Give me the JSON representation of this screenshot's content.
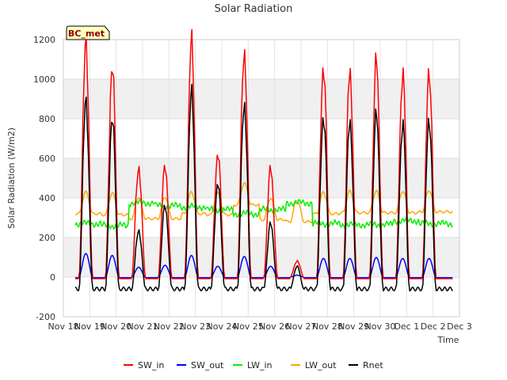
{
  "chart_data": {
    "type": "line",
    "title": "Solar Radiation",
    "xlabel": "Time",
    "ylabel": "Solar Radiation (W/m2)",
    "badge": "BC_met",
    "x_ticks": [
      "Nov 18",
      "Nov 19",
      "Nov 20",
      "Nov 21",
      "Nov 22",
      "Nov 23",
      "Nov 24",
      "Nov 25",
      "Nov 26",
      "Nov 27",
      "Nov 28",
      "Nov 29",
      "Nov 30",
      "Dec 1",
      "Dec 2",
      "Dec 3"
    ],
    "xlim": [
      0,
      15
    ],
    "ylim": [
      -200,
      1200
    ],
    "y_ticks": [
      -200,
      0,
      200,
      400,
      600,
      800,
      1000,
      1200
    ],
    "grid": true,
    "legend_position": "bottom",
    "x_unit_note": "x values are days after Nov 18",
    "days": [
      {
        "sw_in": 1160,
        "sw_out": 120,
        "lw_in": 270,
        "lw_out": 430,
        "rnet": 870
      },
      {
        "sw_in": 1060,
        "sw_out": 110,
        "lw_in": 260,
        "lw_out": 425,
        "rnet": 800
      },
      {
        "sw_in": 560,
        "sw_out": 50,
        "lw_in": 375,
        "lw_out": 405,
        "rnet": 240
      },
      {
        "sw_in": 560,
        "sw_out": 60,
        "lw_in": 360,
        "lw_out": 405,
        "rnet": 360
      },
      {
        "sw_in": 1180,
        "sw_out": 110,
        "lw_in": 355,
        "lw_out": 430,
        "rnet": 920
      },
      {
        "sw_in": 630,
        "sw_out": 55,
        "lw_in": 340,
        "lw_out": 425,
        "rnet": 480
      },
      {
        "sw_in": 1145,
        "sw_out": 105,
        "lw_in": 320,
        "lw_out": 475,
        "rnet": 880
      },
      {
        "sw_in": 545,
        "sw_out": 55,
        "lw_in": 340,
        "lw_out": 400,
        "rnet": 270
      },
      {
        "sw_in": 80,
        "sw_out": 10,
        "lw_in": 375,
        "lw_out": 390,
        "rnet": 55
      },
      {
        "sw_in": 1075,
        "sw_out": 95,
        "lw_in": 270,
        "lw_out": 430,
        "rnet": 820
      },
      {
        "sw_in": 1040,
        "sw_out": 95,
        "lw_in": 265,
        "lw_out": 435,
        "rnet": 785
      },
      {
        "sw_in": 1085,
        "sw_out": 100,
        "lw_in": 265,
        "lw_out": 435,
        "rnet": 815
      },
      {
        "sw_in": 1030,
        "sw_out": 95,
        "lw_in": 285,
        "lw_out": 435,
        "rnet": 775
      },
      {
        "sw_in": 1055,
        "sw_out": 95,
        "lw_in": 270,
        "lw_out": 440,
        "rnet": 805
      }
    ],
    "series": [
      {
        "name": "SW_in",
        "color": "#ff0000"
      },
      {
        "name": "SW_out",
        "color": "#0000ff"
      },
      {
        "name": "LW_in",
        "color": "#00ee00"
      },
      {
        "name": "LW_out",
        "color": "#ffa500"
      },
      {
        "name": "Rnet",
        "color": "#000000"
      }
    ]
  }
}
